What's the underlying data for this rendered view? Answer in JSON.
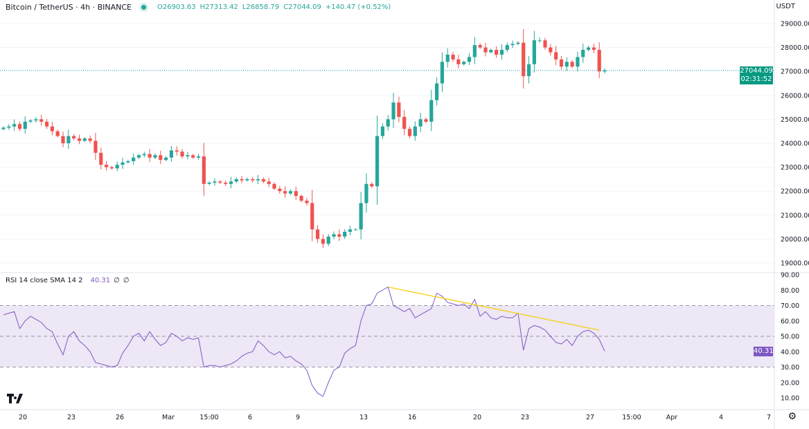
{
  "header": {
    "symbol": "Bitcoin / TetherUS · 4h · BINANCE",
    "open": "O26903.63",
    "high": "H27313.42",
    "low": "L26858.79",
    "close": "C27044.09",
    "change": "+140.47 (+0.52%)"
  },
  "price_axis": {
    "currency": "USDT",
    "ticks": [
      "29000.00",
      "28000.00",
      "27000.00",
      "26000.00",
      "25000.00",
      "24000.00",
      "23000.00",
      "22000.00",
      "21000.00",
      "20000.00",
      "19000.00"
    ],
    "last_price": "27044.09",
    "countdown": "02:31:52"
  },
  "rsi": {
    "label": "RSI 14 close SMA 14 2",
    "value": "40.31",
    "extra1": "∅",
    "extra2": "∅",
    "ticks": [
      "90.00",
      "80.00",
      "70.00",
      "60.00",
      "50.00",
      "40.00",
      "30.00",
      "20.00",
      "10.00"
    ]
  },
  "time_axis": {
    "labels": [
      "20",
      "23",
      "26",
      "Mar",
      "15:00",
      "6",
      "9",
      "13",
      "16",
      "20",
      "23",
      "27",
      "15:00",
      "Apr",
      "4",
      "7"
    ]
  },
  "colors": {
    "up": "#26a69a",
    "down": "#ef5350",
    "rsi": "#7e57c2",
    "trendline": "#f5d327",
    "band": "#ede7f6"
  },
  "logo": "TV",
  "icons": {
    "settings": "gear-icon"
  },
  "chart_data": {
    "type": "candlestick",
    "interval": "4h",
    "ylim": [
      19000,
      29000
    ],
    "closes": [
      24650,
      24700,
      24800,
      24600,
      24900,
      24950,
      25000,
      24900,
      24700,
      24500,
      24300,
      24000,
      24300,
      24200,
      24100,
      24200,
      24100,
      23600,
      23100,
      23000,
      22950,
      23100,
      23200,
      23250,
      23400,
      23500,
      23550,
      23400,
      23500,
      23300,
      23400,
      23700,
      23650,
      23450,
      23500,
      23400,
      23450,
      22300,
      22350,
      22400,
      22350,
      22300,
      22400,
      22500,
      22450,
      22500,
      22450,
      22500,
      22400,
      22300,
      22100,
      22000,
      21900,
      22000,
      21800,
      21600,
      21500,
      20400,
      20000,
      19800,
      20100,
      20200,
      20100,
      20300,
      20400,
      20400,
      21500,
      22300,
      22200,
      24300,
      24700,
      25000,
      25700,
      25100,
      24600,
      24300,
      24700,
      25000,
      24900,
      25800,
      26500,
      27400,
      27700,
      27500,
      27300,
      27400,
      27600,
      28100,
      28000,
      27800,
      27900,
      27700,
      27900,
      28100,
      28150,
      28200,
      26800,
      27300,
      28300,
      28300,
      28000,
      27800,
      27500,
      27200,
      27400,
      27200,
      27600,
      27900,
      28000,
      27900,
      27000,
      27044.09
    ],
    "rsi_values": [
      64,
      65,
      66,
      55,
      60,
      63,
      61,
      59,
      55,
      53,
      45,
      38,
      50,
      53,
      47,
      44,
      40,
      33,
      32,
      31,
      30,
      31,
      39,
      44,
      50,
      52,
      47,
      53,
      48,
      44,
      46,
      52,
      50,
      47,
      49,
      48,
      49,
      30,
      31,
      31,
      30,
      31,
      32,
      34,
      37,
      39,
      40,
      47,
      44,
      40,
      38,
      40,
      36,
      37,
      34,
      32,
      28,
      18,
      13,
      11,
      20,
      28,
      30,
      39,
      42,
      44,
      60,
      70,
      71,
      78,
      80,
      82,
      70,
      68,
      66,
      68,
      62,
      64,
      66,
      68,
      78,
      76,
      72,
      71,
      70,
      71,
      68,
      74,
      63,
      66,
      62,
      61,
      63,
      62,
      62,
      65,
      41,
      55,
      57,
      56,
      54,
      50,
      46,
      45,
      48,
      44,
      50,
      53,
      54,
      52,
      48,
      40.31
    ],
    "rsi_ylim": [
      10,
      90
    ],
    "rsi_bands": [
      30,
      50,
      70
    ],
    "rsi_trendline": [
      {
        "index": 71,
        "value": 82
      },
      {
        "index": 110,
        "value": 54
      }
    ]
  }
}
